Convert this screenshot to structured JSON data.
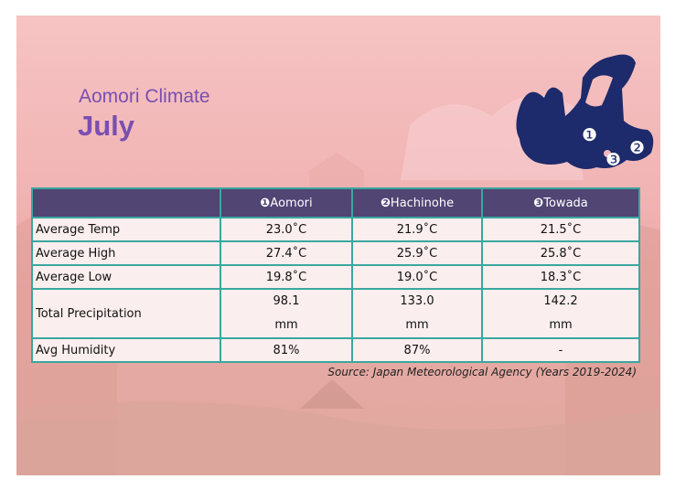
{
  "header": {
    "region": "Aomori Climate",
    "month": "July"
  },
  "map": {
    "markers": [
      "❶",
      "❷",
      "❸"
    ],
    "fill_color": "#1d2a6b"
  },
  "table": {
    "columns": [
      {
        "marker": "❶",
        "name": "Aomori"
      },
      {
        "marker": "❷",
        "name": "Hachinohe"
      },
      {
        "marker": "❸",
        "name": "Towada"
      }
    ],
    "rows": [
      {
        "label": "Average Temp",
        "values": [
          "23.0˚C",
          "21.9˚C",
          "21.5˚C"
        ]
      },
      {
        "label": "Average High",
        "values": [
          "27.4˚C",
          "25.9˚C",
          "25.8˚C"
        ]
      },
      {
        "label": "Average Low",
        "values": [
          "19.8˚C",
          "19.0˚C",
          "18.3˚C"
        ]
      },
      {
        "label": "Total Precipitation",
        "values": [
          "98.1",
          "133.0",
          "142.2"
        ],
        "unit": "mm"
      },
      {
        "label": "Avg Humidity",
        "values": [
          "81%",
          "87%",
          "-"
        ]
      }
    ]
  },
  "source": "Source: Japan Meteorological Agency (Years 2019-2024)",
  "colors": {
    "title": "#7a4fb0",
    "header_bg": "#514574",
    "border": "#3aa7a0",
    "cell_bg": "#fbeeee"
  }
}
